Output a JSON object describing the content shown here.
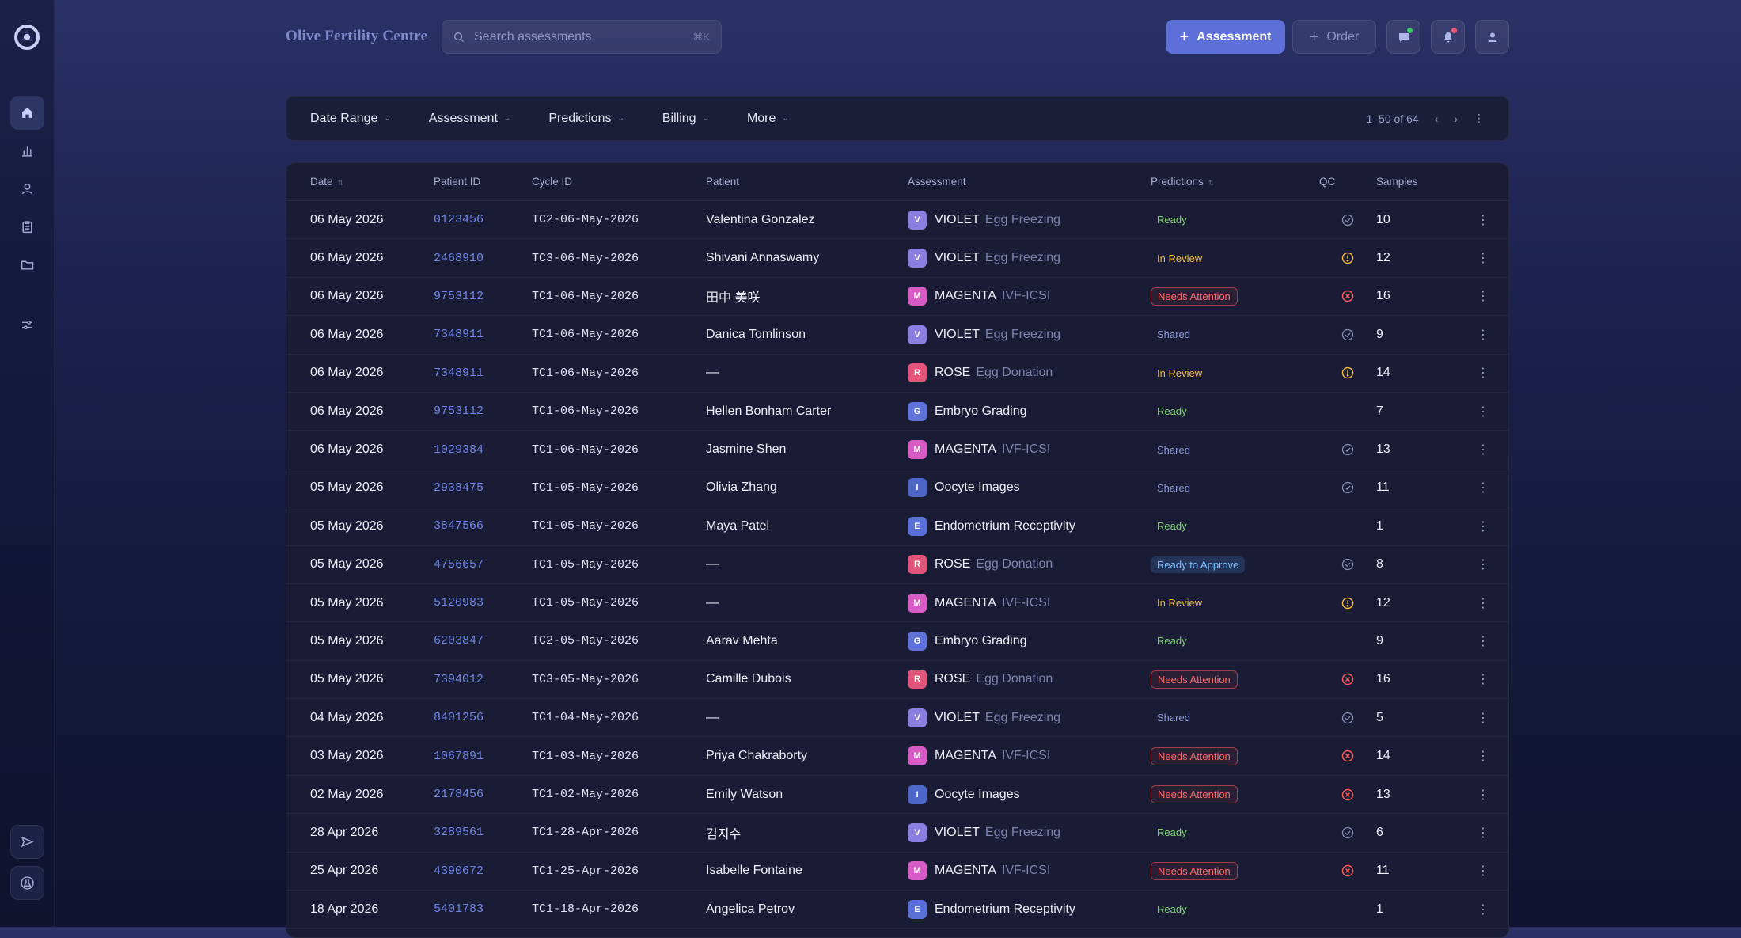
{
  "brand": "Olive Fertility Centre",
  "search": {
    "placeholder": "Search assessments",
    "shortcut": "⌘K"
  },
  "actions": {
    "primary": "Assessment",
    "secondary": "Order"
  },
  "filters": [
    "Date Range",
    "Assessment",
    "Predictions",
    "Billing",
    "More"
  ],
  "pagination": "1–50 of 64",
  "columns": {
    "date": "Date",
    "patient_id": "Patient ID",
    "cycle_id": "Cycle ID",
    "patient": "Patient",
    "assessment": "Assessment",
    "predictions": "Predictions",
    "qc": "QC",
    "samples": "Samples"
  },
  "colors": {
    "violet": "#8a7fe0",
    "magenta": "#d65bc4",
    "rose": "#e2557a",
    "embryo": "#5f73d9",
    "oocyte": "#4f66c9",
    "endometrium": "#5a70d6"
  },
  "rows": [
    {
      "date": "06 May 2026",
      "pid": "0123456",
      "cycle": "TC2-06-May-2026",
      "patient": "Valentina Gonzalez",
      "badge": "V",
      "btype": "violet",
      "name": "VIOLET",
      "sub": "Egg Freezing",
      "status": "Ready",
      "stype": "ready",
      "qc": "check",
      "samples": "10"
    },
    {
      "date": "06 May 2026",
      "pid": "2468910",
      "cycle": "TC3-06-May-2026",
      "patient": "Shivani Annaswamy",
      "badge": "V",
      "btype": "violet",
      "name": "VIOLET",
      "sub": "Egg Freezing",
      "status": "In Review",
      "stype": "review",
      "qc": "warn",
      "samples": "12"
    },
    {
      "date": "06 May 2026",
      "pid": "9753112",
      "cycle": "TC1-06-May-2026",
      "patient": "田中 美咲",
      "badge": "M",
      "btype": "magenta",
      "name": "MAGENTA",
      "sub": "IVF-ICSI",
      "status": "Needs Attention",
      "stype": "attn",
      "qc": "error",
      "samples": "16"
    },
    {
      "date": "06 May 2026",
      "pid": "7348911",
      "cycle": "TC1-06-May-2026",
      "patient": "Danica Tomlinson",
      "badge": "V",
      "btype": "violet",
      "name": "VIOLET",
      "sub": "Egg Freezing",
      "status": "Shared",
      "stype": "shared",
      "qc": "check",
      "samples": "9"
    },
    {
      "date": "06 May 2026",
      "pid": "7348911",
      "cycle": "TC1-06-May-2026",
      "patient": "—",
      "badge": "R",
      "btype": "rose",
      "name": "ROSE",
      "sub": "Egg Donation",
      "status": "In Review",
      "stype": "review",
      "qc": "warn",
      "samples": "14"
    },
    {
      "date": "06 May 2026",
      "pid": "9753112",
      "cycle": "TC1-06-May-2026",
      "patient": "Hellen Bonham Carter",
      "badge": "G",
      "btype": "embryo",
      "name": "Embryo Grading",
      "sub": "",
      "status": "Ready",
      "stype": "ready",
      "qc": "",
      "samples": "7"
    },
    {
      "date": "06 May 2026",
      "pid": "1029384",
      "cycle": "TC1-06-May-2026",
      "patient": "Jasmine Shen",
      "badge": "M",
      "btype": "magenta",
      "name": "MAGENTA",
      "sub": "IVF-ICSI",
      "status": "Shared",
      "stype": "shared",
      "qc": "check",
      "samples": "13"
    },
    {
      "date": "05 May 2026",
      "pid": "2938475",
      "cycle": "TC1-05-May-2026",
      "patient": "Olivia Zhang",
      "badge": "I",
      "btype": "oocyte",
      "name": "Oocyte Images",
      "sub": "",
      "status": "Shared",
      "stype": "shared",
      "qc": "check",
      "samples": "11"
    },
    {
      "date": "05 May 2026",
      "pid": "3847566",
      "cycle": "TC1-05-May-2026",
      "patient": "Maya Patel",
      "badge": "E",
      "btype": "endometrium",
      "name": "Endometrium Receptivity",
      "sub": "",
      "status": "Ready",
      "stype": "ready",
      "qc": "",
      "samples": "1"
    },
    {
      "date": "05 May 2026",
      "pid": "4756657",
      "cycle": "TC1-05-May-2026",
      "patient": "—",
      "badge": "R",
      "btype": "rose",
      "name": "ROSE",
      "sub": "Egg Donation",
      "status": "Ready to Approve",
      "stype": "approve",
      "qc": "check",
      "samples": "8"
    },
    {
      "date": "05 May 2026",
      "pid": "5120983",
      "cycle": "TC1-05-May-2026",
      "patient": "—",
      "badge": "M",
      "btype": "magenta",
      "name": "MAGENTA",
      "sub": "IVF-ICSI",
      "status": "In Review",
      "stype": "review",
      "qc": "warn",
      "samples": "12"
    },
    {
      "date": "05 May 2026",
      "pid": "6203847",
      "cycle": "TC2-05-May-2026",
      "patient": "Aarav Mehta",
      "badge": "G",
      "btype": "embryo",
      "name": "Embryo Grading",
      "sub": "",
      "status": "Ready",
      "stype": "ready",
      "qc": "",
      "samples": "9"
    },
    {
      "date": "05 May 2026",
      "pid": "7394012",
      "cycle": "TC3-05-May-2026",
      "patient": "Camille Dubois",
      "badge": "R",
      "btype": "rose",
      "name": "ROSE",
      "sub": "Egg Donation",
      "status": "Needs Attention",
      "stype": "attn",
      "qc": "error",
      "samples": "16"
    },
    {
      "date": "04 May 2026",
      "pid": "8401256",
      "cycle": "TC1-04-May-2026",
      "patient": "—",
      "badge": "V",
      "btype": "violet",
      "name": "VIOLET",
      "sub": "Egg Freezing",
      "status": "Shared",
      "stype": "shared",
      "qc": "check",
      "samples": "5"
    },
    {
      "date": "03 May 2026",
      "pid": "1067891",
      "cycle": "TC1-03-May-2026",
      "patient": "Priya Chakraborty",
      "badge": "M",
      "btype": "magenta",
      "name": "MAGENTA",
      "sub": "IVF-ICSI",
      "status": "Needs Attention",
      "stype": "attn",
      "qc": "error",
      "samples": "14"
    },
    {
      "date": "02 May 2026",
      "pid": "2178456",
      "cycle": "TC1-02-May-2026",
      "patient": "Emily Watson",
      "badge": "I",
      "btype": "oocyte",
      "name": "Oocyte Images",
      "sub": "",
      "status": "Needs Attention",
      "stype": "attn",
      "qc": "error",
      "samples": "13"
    },
    {
      "date": "28 Apr 2026",
      "pid": "3289561",
      "cycle": "TC1-28-Apr-2026",
      "patient": "김지수",
      "badge": "V",
      "btype": "violet",
      "name": "VIOLET",
      "sub": "Egg Freezing",
      "status": "Ready",
      "stype": "ready",
      "qc": "check",
      "samples": "6"
    },
    {
      "date": "25 Apr 2026",
      "pid": "4390672",
      "cycle": "TC1-25-Apr-2026",
      "patient": "Isabelle Fontaine",
      "badge": "M",
      "btype": "magenta",
      "name": "MAGENTA",
      "sub": "IVF-ICSI",
      "status": "Needs Attention",
      "stype": "attn",
      "qc": "error",
      "samples": "11"
    },
    {
      "date": "18 Apr 2026",
      "pid": "5401783",
      "cycle": "TC1-18-Apr-2026",
      "patient": "Angelica Petrov",
      "badge": "E",
      "btype": "endometrium",
      "name": "Endometrium Receptivity",
      "sub": "",
      "status": "Ready",
      "stype": "ready",
      "qc": "",
      "samples": "1"
    }
  ]
}
